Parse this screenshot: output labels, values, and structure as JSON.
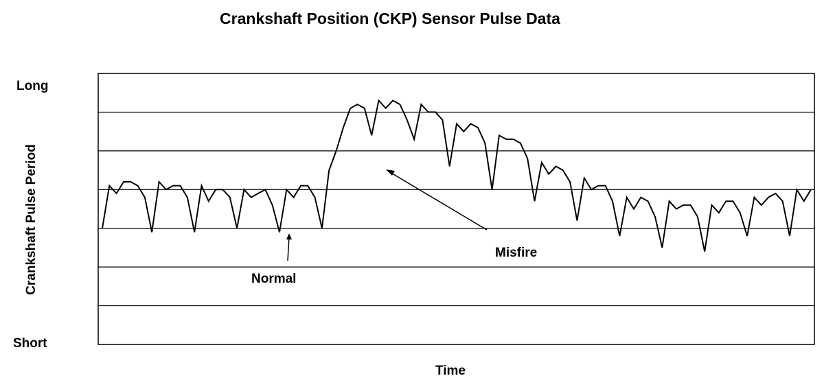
{
  "chart_data": {
    "type": "line",
    "title": "Crankshaft Position (CKP) Sensor Pulse Data",
    "xlabel": "Time",
    "ylabel": "Crankshaft Pulse Period",
    "ytick_top": "Long",
    "ytick_bottom": "Short",
    "ylim": [
      0,
      7
    ],
    "grid": true,
    "annotations": [
      {
        "text": "Normal",
        "points_to": [
          45,
          2.9
        ]
      },
      {
        "text": "Misfire",
        "points_to": [
          70,
          4.5
        ]
      }
    ],
    "series": [
      {
        "values": [
          3.0,
          4.1,
          3.9,
          4.2,
          4.2,
          4.1,
          3.8,
          2.9,
          4.2,
          4.0,
          4.1,
          4.1,
          3.8,
          2.9,
          4.1,
          3.7,
          4.0,
          4.0,
          3.8,
          3.0,
          4.0,
          3.8,
          3.9,
          4.0,
          3.6,
          2.9,
          4.0,
          3.8,
          4.1,
          4.1,
          3.8,
          3.0,
          4.5,
          5.0,
          5.6,
          6.1,
          6.2,
          6.1,
          5.4,
          6.3,
          6.1,
          6.3,
          6.2,
          5.8,
          5.3,
          6.2,
          6.0,
          6.0,
          5.8,
          4.6,
          5.7,
          5.5,
          5.7,
          5.6,
          5.2,
          4.0,
          5.4,
          5.3,
          5.3,
          5.2,
          4.8,
          3.7,
          4.7,
          4.4,
          4.6,
          4.5,
          4.2,
          3.2,
          4.3,
          4.0,
          4.1,
          4.1,
          3.7,
          2.8,
          3.8,
          3.5,
          3.8,
          3.7,
          3.3,
          2.5,
          3.7,
          3.5,
          3.6,
          3.6,
          3.3,
          2.4,
          3.6,
          3.4,
          3.7,
          3.7,
          3.4,
          2.8,
          3.8,
          3.6,
          3.8,
          3.9,
          3.7,
          2.8,
          4.0,
          3.7,
          4.0
        ]
      }
    ]
  }
}
